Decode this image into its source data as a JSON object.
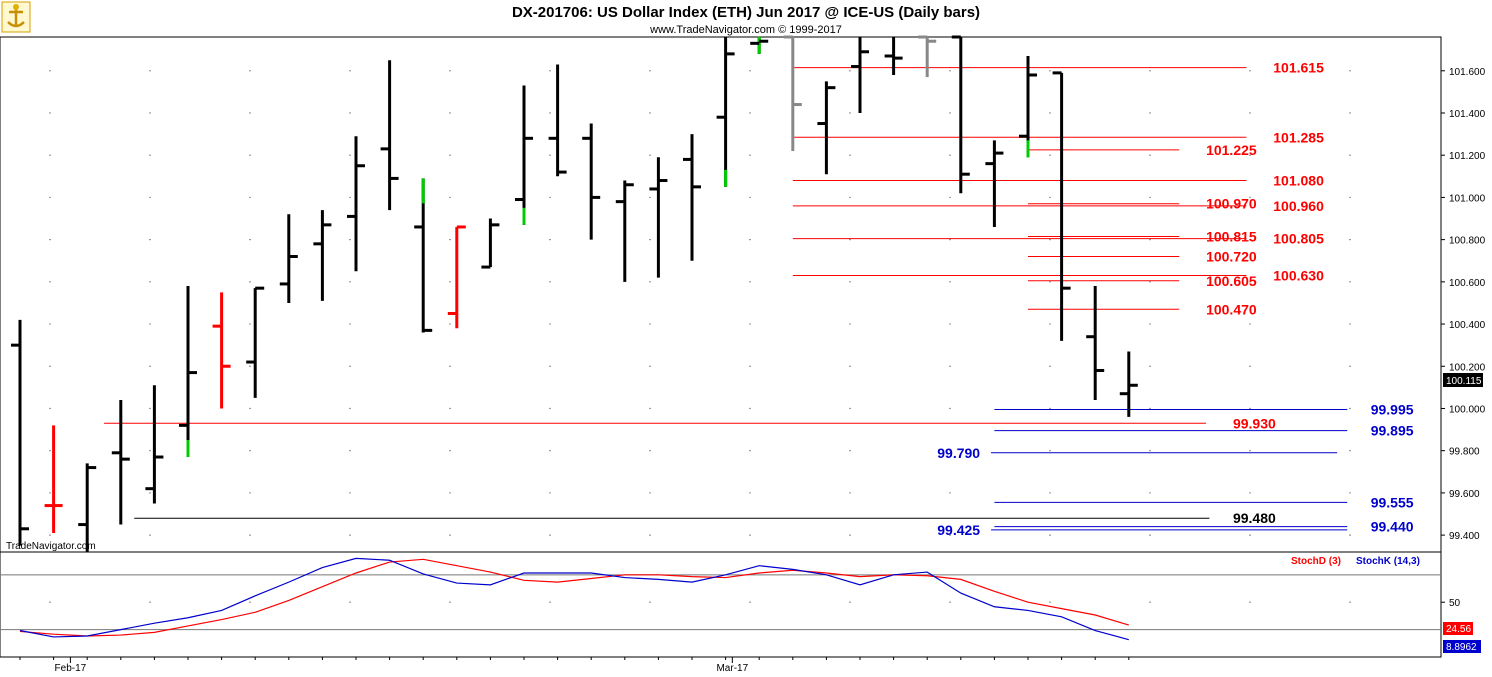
{
  "header": {
    "title": "DX-201706:  US Dollar Index (ETH) Jun 2017 @ ICE-US  (Daily bars)",
    "copyright": "www.TradeNavigator.com © 1999-2017",
    "watermark": "TradeNavigator.com",
    "logo_icon": "anchor-trophy-logo-icon"
  },
  "chart_data": [
    {
      "type": "ohlc",
      "ylim": [
        99.32,
        101.76
      ],
      "yticks": [
        "101.600",
        "101.400",
        "101.200",
        "101.000",
        "100.800",
        "100.600",
        "100.400",
        "100.200",
        "100.000",
        "99.800",
        "99.600",
        "99.400"
      ],
      "xticks": [
        {
          "label": "Feb-17",
          "bar": 1.5
        },
        {
          "label": "Mar-17",
          "bar": 21.2
        }
      ],
      "last_price": "100.115",
      "bars": [
        {
          "o": 100.3,
          "h": 100.42,
          "l": 99.35,
          "c": 99.43,
          "color": "#000000"
        },
        {
          "o": 99.54,
          "h": 99.92,
          "l": 99.41,
          "c": 99.54,
          "color": "#ff0000"
        },
        {
          "o": 99.45,
          "h": 99.74,
          "l": 99.32,
          "c": 99.72,
          "color": "#000000"
        },
        {
          "o": 99.79,
          "h": 100.04,
          "l": 99.45,
          "c": 99.76,
          "color": "#000000"
        },
        {
          "o": 99.62,
          "h": 100.11,
          "l": 99.55,
          "c": 99.77,
          "color": "#000000"
        },
        {
          "o": 99.92,
          "h": 100.58,
          "l": 99.77,
          "c": 100.17,
          "color": "#000000",
          "low_tail_color": "#00cc00"
        },
        {
          "o": 100.39,
          "h": 100.55,
          "l": 100.0,
          "c": 100.2,
          "color": "#ff0000"
        },
        {
          "o": 100.22,
          "h": 100.57,
          "l": 100.05,
          "c": 100.57,
          "color": "#000000"
        },
        {
          "o": 100.59,
          "h": 100.92,
          "l": 100.5,
          "c": 100.72,
          "color": "#000000"
        },
        {
          "o": 100.78,
          "h": 100.94,
          "l": 100.51,
          "c": 100.87,
          "color": "#000000"
        },
        {
          "o": 100.91,
          "h": 101.29,
          "l": 100.65,
          "c": 101.15,
          "color": "#000000"
        },
        {
          "o": 101.23,
          "h": 101.65,
          "l": 100.94,
          "c": 101.09,
          "color": "#000000"
        },
        {
          "o": 100.86,
          "h": 101.09,
          "l": 100.36,
          "c": 100.37,
          "color": "#000000",
          "high_tail_color": "#00cc00"
        },
        {
          "o": 100.45,
          "h": 100.86,
          "l": 100.38,
          "c": 100.86,
          "color": "#ff0000"
        },
        {
          "o": 100.67,
          "h": 100.9,
          "l": 100.67,
          "c": 100.87,
          "color": "#000000"
        },
        {
          "o": 100.99,
          "h": 101.53,
          "l": 100.87,
          "c": 101.28,
          "color": "#000000",
          "low_tail_color": "#00cc00"
        },
        {
          "o": 101.28,
          "h": 101.63,
          "l": 101.1,
          "c": 101.12,
          "color": "#000000"
        },
        {
          "o": 101.28,
          "h": 101.35,
          "l": 100.8,
          "c": 101.0,
          "color": "#000000"
        },
        {
          "o": 100.98,
          "h": 101.08,
          "l": 100.6,
          "c": 101.06,
          "color": "#000000"
        },
        {
          "o": 101.04,
          "h": 101.19,
          "l": 100.62,
          "c": 101.08,
          "color": "#000000"
        },
        {
          "o": 101.18,
          "h": 101.3,
          "l": 100.7,
          "c": 101.05,
          "color": "#000000"
        },
        {
          "o": 101.38,
          "h": 101.76,
          "l": 101.05,
          "c": 101.68,
          "color": "#000000",
          "low_tail_color": "#00cc00"
        },
        {
          "o": 101.73,
          "h": 101.76,
          "l": 101.68,
          "c": 101.74,
          "color": "#000000",
          "low_tail_color": "#00cc00"
        },
        {
          "o": 101.76,
          "h": 101.76,
          "l": 101.22,
          "c": 101.44,
          "color": "#888888"
        },
        {
          "o": 101.35,
          "h": 101.55,
          "l": 101.11,
          "c": 101.52,
          "color": "#000000"
        },
        {
          "o": 101.62,
          "h": 101.76,
          "l": 101.4,
          "c": 101.69,
          "color": "#000000"
        },
        {
          "o": 101.67,
          "h": 101.76,
          "l": 101.58,
          "c": 101.66,
          "color": "#000000"
        },
        {
          "o": 101.76,
          "h": 101.76,
          "l": 101.57,
          "c": 101.74,
          "color": "#888888"
        },
        {
          "o": 101.76,
          "h": 101.76,
          "l": 101.02,
          "c": 101.11,
          "color": "#000000"
        },
        {
          "o": 101.16,
          "h": 101.27,
          "l": 100.86,
          "c": 101.21,
          "color": "#000000"
        },
        {
          "o": 101.29,
          "h": 101.67,
          "l": 101.19,
          "c": 101.58,
          "color": "#000000",
          "low_tail_color": "#00cc00"
        },
        {
          "o": 101.59,
          "h": 101.59,
          "l": 100.32,
          "c": 100.57,
          "color": "#000000"
        },
        {
          "o": 100.34,
          "h": 100.58,
          "l": 100.04,
          "c": 100.18,
          "color": "#000000"
        },
        {
          "o": 100.07,
          "h": 100.27,
          "l": 99.96,
          "c": 100.11,
          "color": "#000000"
        }
      ],
      "levels": [
        {
          "value": "101.615",
          "price": 101.615,
          "color": "#ff0000",
          "bar0": 23,
          "bar1": 36.5,
          "label_bar": 37.3
        },
        {
          "value": "101.285",
          "price": 101.285,
          "color": "#ff0000",
          "bar0": 23,
          "bar1": 36.5,
          "label_bar": 37.3
        },
        {
          "value": "101.225",
          "price": 101.225,
          "color": "#ff0000",
          "bar0": 30,
          "bar1": 34.5,
          "label_bar": 35.3
        },
        {
          "value": "101.080",
          "price": 101.08,
          "color": "#ff0000",
          "bar0": 23,
          "bar1": 36.5,
          "label_bar": 37.3
        },
        {
          "value": "100.970",
          "price": 100.97,
          "color": "#ff0000",
          "bar0": 30,
          "bar1": 34.5,
          "label_bar": 35.3
        },
        {
          "value": "100.960",
          "price": 100.96,
          "color": "#ff0000",
          "bar0": 23,
          "bar1": 36.5,
          "label_bar": 37.3
        },
        {
          "value": "100.815",
          "price": 100.815,
          "color": "#ff0000",
          "bar0": 30,
          "bar1": 34.5,
          "label_bar": 35.3
        },
        {
          "value": "100.805",
          "price": 100.805,
          "color": "#ff0000",
          "bar0": 23,
          "bar1": 36.5,
          "label_bar": 37.3
        },
        {
          "value": "100.720",
          "price": 100.72,
          "color": "#ff0000",
          "bar0": 30,
          "bar1": 34.5,
          "label_bar": 35.3
        },
        {
          "value": "100.630",
          "price": 100.63,
          "color": "#ff0000",
          "bar0": 23,
          "bar1": 36.5,
          "label_bar": 37.3
        },
        {
          "value": "100.605",
          "price": 100.605,
          "color": "#ff0000",
          "bar0": 30,
          "bar1": 34.5,
          "label_bar": 35.3
        },
        {
          "value": "100.470",
          "price": 100.47,
          "color": "#ff0000",
          "bar0": 30,
          "bar1": 34.5,
          "label_bar": 35.3
        },
        {
          "value": "99.995",
          "price": 99.995,
          "color": "#0000cc",
          "bar0": 29,
          "bar1": 39.5,
          "label_bar": 40.2
        },
        {
          "value": "99.930",
          "price": 99.93,
          "color": "#ff0000",
          "bar0": 2.5,
          "bar1": 35.3,
          "label_bar": 36.1
        },
        {
          "value": "99.895",
          "price": 99.895,
          "color": "#0000cc",
          "bar0": 29,
          "bar1": 39.5,
          "label_bar": 40.2
        },
        {
          "value": "99.790",
          "price": 99.79,
          "color": "#0000cc",
          "bar0": 28.9,
          "bar1": 39.2,
          "label_bar": 27.3
        },
        {
          "value": "99.555",
          "price": 99.555,
          "color": "#0000cc",
          "bar0": 29,
          "bar1": 39.5,
          "label_bar": 40.2
        },
        {
          "value": "99.480",
          "price": 99.48,
          "color": "#000000",
          "bar0": 3.4,
          "bar1": 35.4,
          "label_bar": 36.1
        },
        {
          "value": "99.440",
          "price": 99.44,
          "color": "#0000cc",
          "bar0": 29,
          "bar1": 39.5,
          "label_bar": 40.2
        },
        {
          "value": "99.425",
          "price": 99.425,
          "color": "#0000cc",
          "bar0": 28.9,
          "bar1": 39.5,
          "label_bar": 27.3
        }
      ]
    },
    {
      "type": "line",
      "ylim": [
        -10,
        105
      ],
      "yticks": [
        "50"
      ],
      "bands": [
        20,
        80
      ],
      "legend": [
        {
          "name": "StochD (3)",
          "color": "#ff0000"
        },
        {
          "name": "StochK (14,3)",
          "color": "#0000cc"
        }
      ],
      "last_values": [
        {
          "value": "24.56",
          "bg": "#ff0000"
        },
        {
          "value": "8.8962",
          "bg": "#0000cc"
        }
      ],
      "series": [
        {
          "name": "StochD (3)",
          "color": "#ff0000",
          "values": [
            18,
            15,
            13,
            14,
            17,
            24,
            31,
            39,
            52,
            67,
            82,
            94,
            97,
            90,
            83,
            74,
            72,
            76,
            80,
            80,
            78,
            77,
            82,
            85,
            82,
            78,
            80,
            79,
            75,
            62,
            50,
            43,
            36,
            25
          ]
        },
        {
          "name": "StochK (14,3)",
          "color": "#0000cc",
          "values": [
            19,
            12,
            13,
            20,
            27,
            33,
            41,
            57,
            72,
            88,
            98,
            96,
            81,
            71,
            69,
            82,
            82,
            82,
            77,
            75,
            72,
            80,
            90,
            86,
            80,
            69,
            80,
            83,
            60,
            45,
            41,
            34,
            19,
            9
          ]
        }
      ]
    }
  ]
}
